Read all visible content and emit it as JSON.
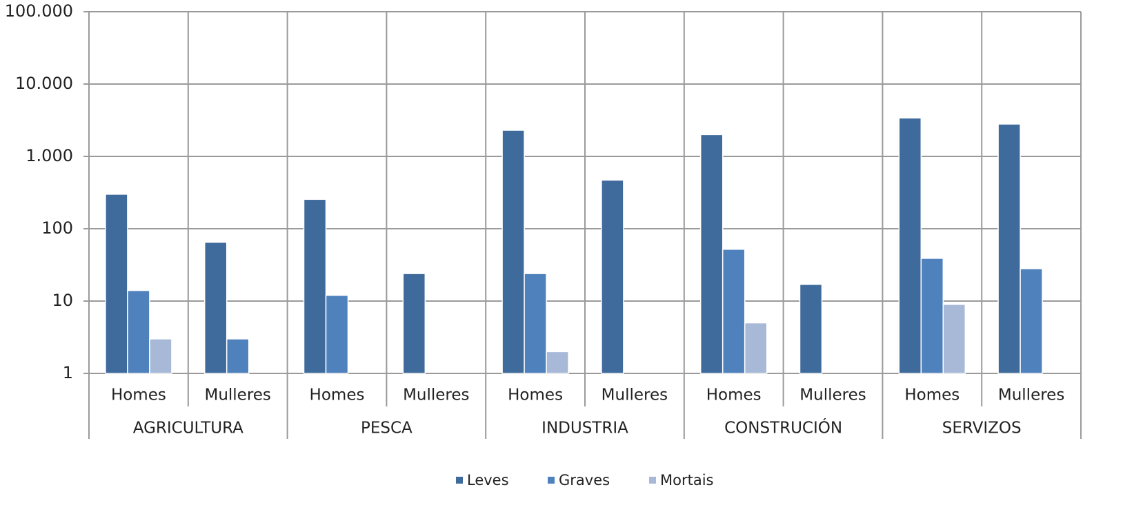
{
  "chart_data": {
    "type": "bar",
    "log": true,
    "grid": true,
    "legend": "bottom",
    "groups": [
      "AGRICULTURA",
      "PESCA",
      "INDUSTRIA",
      "CONSTRUCIÓN",
      "SERVIZOS"
    ],
    "categories": [
      "Homes",
      "Mulleres",
      "Homes",
      "Mulleres",
      "Homes",
      "Mulleres",
      "Homes",
      "Mulleres",
      "Homes",
      "Mulleres"
    ],
    "series": [
      {
        "name": "Leves",
        "color": "#3f6a9c",
        "values": [
          300,
          65,
          255,
          24,
          2300,
          470,
          2000,
          17,
          3400,
          2800
        ]
      },
      {
        "name": "Graves",
        "color": "#4f81bd",
        "values": [
          14,
          3,
          12,
          null,
          24,
          null,
          52,
          null,
          39,
          28
        ]
      },
      {
        "name": "Mortais",
        "color": "#a8b9d8",
        "values": [
          3,
          null,
          null,
          null,
          2,
          null,
          5,
          null,
          9,
          null
        ]
      }
    ],
    "ylim": [
      1,
      100000
    ],
    "yticks": [
      1,
      10,
      100,
      {
        "value": 1000,
        "label": "1.000"
      },
      {
        "value": 10000,
        "label": "10.000"
      },
      {
        "value": 100000,
        "label": "100.000"
      }
    ]
  }
}
